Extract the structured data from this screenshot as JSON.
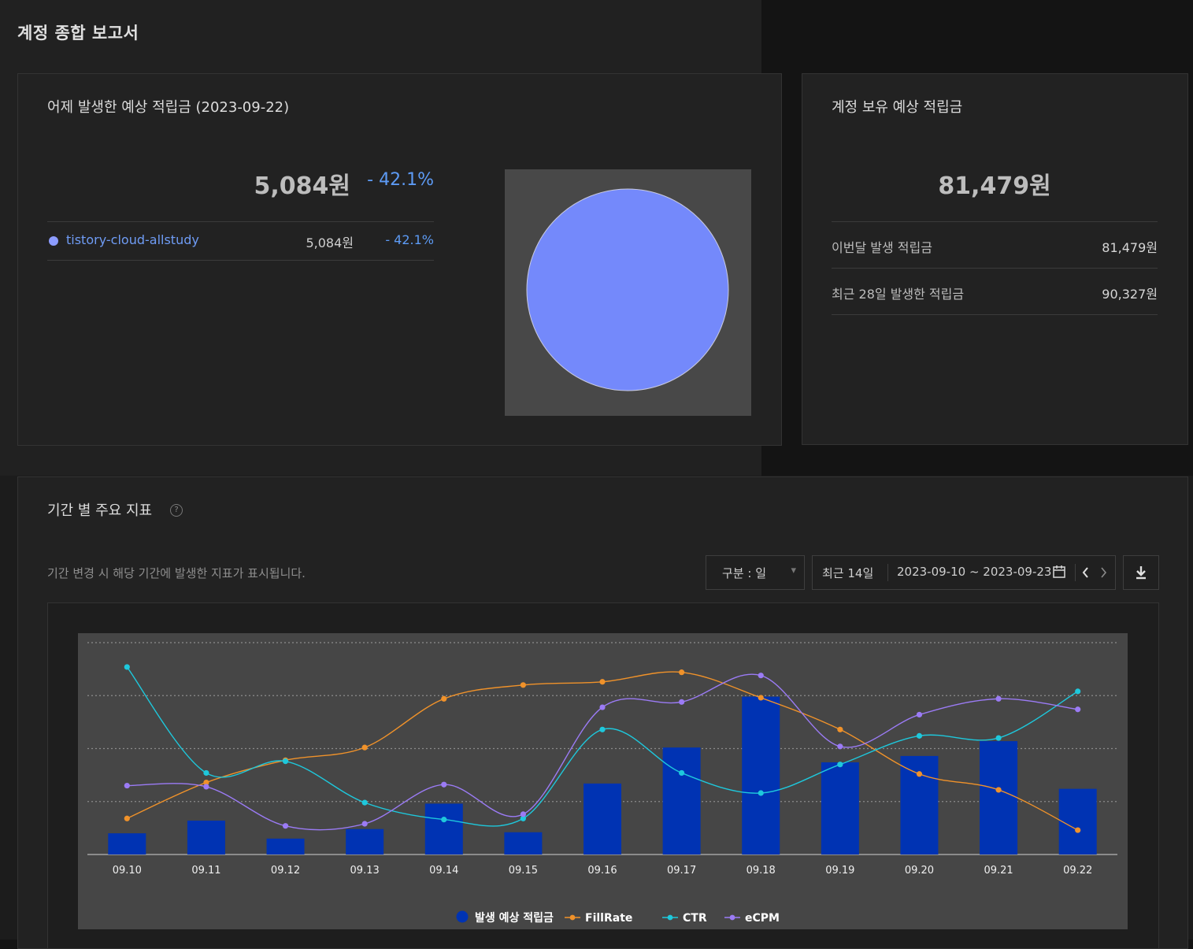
{
  "report": {
    "title": "계정 종합 보고서"
  },
  "yesterday": {
    "title": "어제 발생한 예상 적립금 (2023-09-22)",
    "amount": "5,084원",
    "change": "- 42.1%",
    "rows": [
      {
        "name": "tistory-cloud-allstudy",
        "amount": "5,084원",
        "change": "- 42.1%"
      }
    ],
    "pie": [
      {
        "name": "tistory-cloud-allstudy",
        "share": 100,
        "color": "#7489fb"
      }
    ]
  },
  "balance": {
    "title": "계정 보유 예상 적립금",
    "amount": "81,479원",
    "rows": [
      {
        "label": "이번달 발생 적립금",
        "value": "81,479원"
      },
      {
        "label": "최근 28일 발생한 적립금",
        "value": "90,327원"
      }
    ]
  },
  "metrics": {
    "title": "기간 별 주요 지표",
    "help": "?",
    "description": "기간 변경 시 해당 기간에 발생한 지표가 표시됩니다.",
    "unit_select": {
      "label": "구분 : 일",
      "arrow": "▾"
    },
    "range": {
      "preset": "최근 14일",
      "dates": "2023-09-10 ~ 2023-09-23"
    },
    "icons": {
      "calendar": "calendar-icon",
      "prev": "chevron-left-icon",
      "next": "chevron-right-icon",
      "download": "download-icon"
    }
  },
  "chart_data": {
    "type": "bar",
    "categories": [
      "09.10",
      "09.11",
      "09.12",
      "09.13",
      "09.14",
      "09.15",
      "09.16",
      "09.17",
      "09.18",
      "09.19",
      "09.20",
      "09.21",
      "09.22"
    ],
    "series": [
      {
        "name": "발생 예상 적립금",
        "type": "bar",
        "color": "#0033b3",
        "values": [
          1.0,
          1.6,
          0.75,
          1.2,
          2.4,
          1.05,
          3.35,
          5.05,
          7.45,
          4.35,
          4.65,
          5.35,
          3.1
        ]
      },
      {
        "name": "FillRate",
        "type": "line",
        "color": "#f0922a",
        "values": [
          1.7,
          3.4,
          4.45,
          5.05,
          7.35,
          8.0,
          8.15,
          8.6,
          7.4,
          5.9,
          3.8,
          3.05,
          1.15
        ]
      },
      {
        "name": "CTR",
        "type": "line",
        "color": "#1ec8dc",
        "values": [
          8.85,
          3.85,
          4.4,
          2.45,
          1.65,
          1.7,
          5.9,
          3.85,
          2.9,
          4.25,
          5.6,
          5.5,
          7.7
        ]
      },
      {
        "name": "eCPM",
        "type": "line",
        "color": "#9b7bf5",
        "values": [
          3.25,
          3.2,
          1.35,
          1.45,
          3.3,
          1.9,
          6.95,
          7.2,
          8.45,
          5.1,
          6.6,
          7.35,
          6.85
        ]
      }
    ],
    "ylim": [
      0,
      10
    ],
    "grid": true,
    "legend": "bottom-center"
  }
}
